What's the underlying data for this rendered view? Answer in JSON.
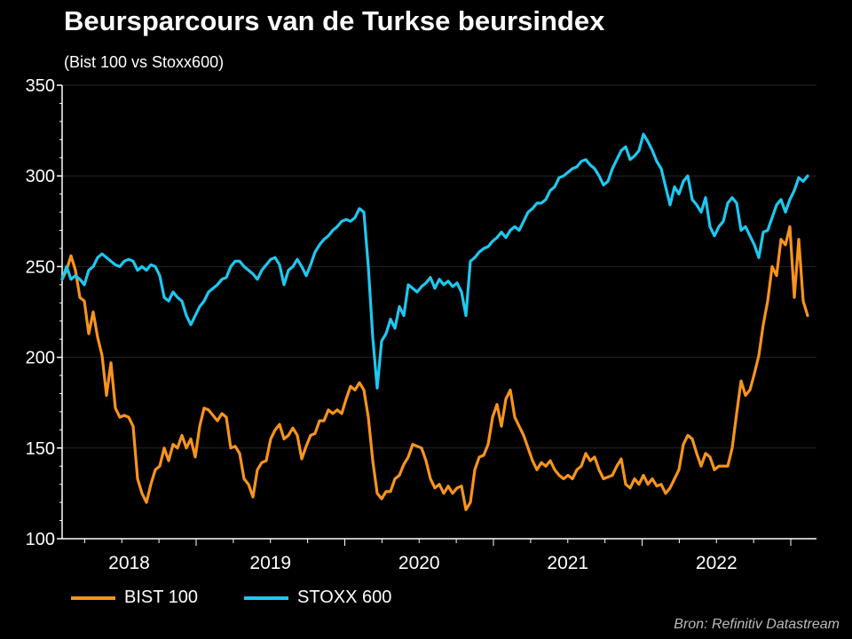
{
  "title": "Beursparcours van de Turkse beursindex",
  "subtitle": "(Bist 100 vs  Stoxx600)",
  "source": "Bron: Refinitiv Datastream",
  "chart_data": {
    "type": "line",
    "title": "Beursparcours van de Turkse beursindex",
    "subtitle": "(Bist 100 vs  Stoxx600)",
    "xlabel": "",
    "ylabel": "",
    "ylim": [
      100,
      350
    ],
    "xlim": [
      2018.0985,
      2023.173
    ],
    "yticks": [
      100,
      150,
      200,
      250,
      300,
      350
    ],
    "xtick_labels": [
      {
        "label": "2018",
        "at": 2018.5
      },
      {
        "label": "2019",
        "at": 2019.5
      },
      {
        "label": "2020",
        "at": 2020.5
      },
      {
        "label": "2021",
        "at": 2021.5
      },
      {
        "label": "2022",
        "at": 2022.5
      }
    ],
    "year_boundaries": [
      2019,
      2020,
      2021,
      2022,
      2023
    ],
    "grid": true,
    "legend_position": "bottom-left",
    "x_start": 2018.0985,
    "x_step": 0.02985,
    "series": [
      {
        "name": "BIST 100",
        "color": "#f7941d",
        "values": [
          243,
          248,
          256,
          248,
          233,
          231,
          213,
          225,
          211,
          201,
          179,
          197,
          172,
          167,
          168,
          167,
          162,
          133,
          125,
          120,
          130,
          138,
          140,
          150,
          143,
          152,
          150,
          157,
          150,
          155,
          145,
          162,
          172,
          171,
          168,
          165,
          169,
          167,
          150,
          151,
          147,
          133,
          130,
          123,
          138,
          142,
          143,
          155,
          160,
          163,
          155,
          157,
          161,
          157,
          144,
          151,
          157,
          158,
          165,
          165,
          171,
          169,
          171,
          169,
          177,
          184,
          182,
          186,
          182,
          167,
          143,
          125,
          122,
          126,
          126,
          133,
          135,
          141,
          145,
          152,
          151,
          150,
          143,
          133,
          128,
          130,
          125,
          129,
          125,
          128,
          129,
          116,
          120,
          138,
          145,
          146,
          152,
          167,
          174,
          162,
          177,
          182,
          167,
          162,
          157,
          150,
          143,
          138,
          142,
          140,
          143,
          138,
          135,
          133,
          135,
          133,
          138,
          140,
          147,
          143,
          145,
          138,
          133,
          134,
          135,
          140,
          144,
          130,
          128,
          133,
          130,
          135,
          130,
          133,
          129,
          130,
          125,
          128,
          133,
          138,
          152,
          157,
          155,
          147,
          140,
          147,
          145,
          138,
          140,
          140,
          140,
          150,
          169,
          187,
          179,
          182,
          191,
          201,
          218,
          231,
          250,
          245,
          265,
          262,
          272,
          233,
          265,
          231,
          223
        ]
      },
      {
        "name": "STOXX 600",
        "color": "#1ec8f0",
        "values": [
          243,
          250,
          243,
          245,
          243,
          240,
          248,
          250,
          255,
          257,
          255,
          253,
          251,
          250,
          253,
          254,
          253,
          248,
          250,
          248,
          251,
          250,
          245,
          233,
          231,
          236,
          233,
          231,
          223,
          218,
          223,
          228,
          231,
          236,
          238,
          240,
          243,
          244,
          250,
          253,
          253,
          250,
          248,
          246,
          243,
          248,
          251,
          254,
          255,
          251,
          240,
          248,
          250,
          254,
          250,
          245,
          251,
          258,
          262,
          265,
          267,
          270,
          272,
          275,
          276,
          275,
          277,
          282,
          280,
          250,
          211,
          183,
          209,
          213,
          221,
          216,
          228,
          223,
          240,
          238,
          236,
          239,
          241,
          244,
          238,
          243,
          240,
          242,
          239,
          241,
          236,
          223,
          253,
          255,
          258,
          260,
          261,
          264,
          266,
          269,
          266,
          270,
          272,
          270,
          275,
          280,
          282,
          285,
          285,
          287,
          292,
          294,
          299,
          300,
          302,
          304,
          305,
          308,
          309,
          306,
          304,
          300,
          295,
          297,
          304,
          309,
          314,
          316,
          309,
          311,
          314,
          323,
          319,
          314,
          308,
          304,
          294,
          284,
          294,
          290,
          297,
          300,
          287,
          284,
          280,
          288,
          272,
          267,
          272,
          275,
          285,
          288,
          285,
          270,
          272,
          267,
          262,
          255,
          269,
          270,
          277,
          284,
          287,
          280,
          287,
          292,
          299,
          297,
          300
        ]
      }
    ]
  }
}
